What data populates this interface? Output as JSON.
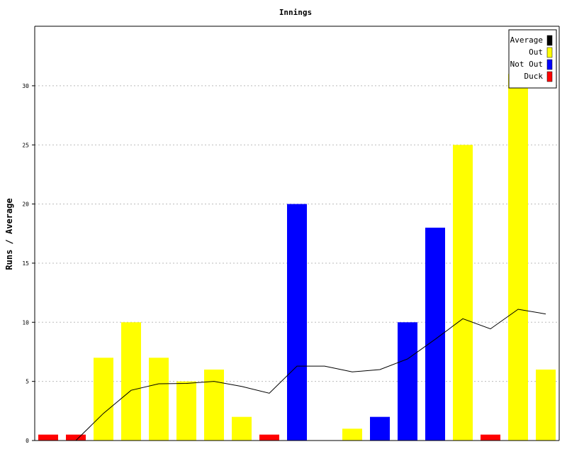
{
  "chart_data": {
    "type": "bar",
    "title": "Innings",
    "ylabel": "Runs / Average",
    "xlabel": "",
    "ylim": [
      0,
      35
    ],
    "yticks": [
      0,
      5,
      10,
      15,
      20,
      25,
      30
    ],
    "grid": true,
    "legend_position": "top-right",
    "legend": [
      {
        "name": "Average",
        "color": "#000000"
      },
      {
        "name": "Out",
        "color": "#ffff00"
      },
      {
        "name": "Not Out",
        "color": "#0000ff"
      },
      {
        "name": "Duck",
        "color": "#ff0000"
      }
    ],
    "innings": [
      {
        "runs": 0,
        "status": "Duck"
      },
      {
        "runs": 0,
        "status": "Duck"
      },
      {
        "runs": 7,
        "status": "Out"
      },
      {
        "runs": 10,
        "status": "Out"
      },
      {
        "runs": 7,
        "status": "Out"
      },
      {
        "runs": 5,
        "status": "Out"
      },
      {
        "runs": 6,
        "status": "Out"
      },
      {
        "runs": 2,
        "status": "Out"
      },
      {
        "runs": 0,
        "status": "Duck"
      },
      {
        "runs": 20,
        "status": "Not Out"
      },
      {
        "runs": 0,
        "status": "Out"
      },
      {
        "runs": 1,
        "status": "Out"
      },
      {
        "runs": 2,
        "status": "Not Out"
      },
      {
        "runs": 10,
        "status": "Not Out"
      },
      {
        "runs": 18,
        "status": "Not Out"
      },
      {
        "runs": 25,
        "status": "Out"
      },
      {
        "runs": 0,
        "status": "Duck"
      },
      {
        "runs": 31,
        "status": "Out"
      },
      {
        "runs": 6,
        "status": "Out"
      }
    ],
    "average": [
      null,
      0,
      2.3,
      4.25,
      4.8,
      4.83,
      5,
      4.57,
      4.0,
      6.29,
      6.29,
      5.8,
      6.0,
      6.9,
      8.56,
      10.3,
      9.44,
      11.1,
      10.7
    ],
    "duck_marker_value": 0.5
  }
}
